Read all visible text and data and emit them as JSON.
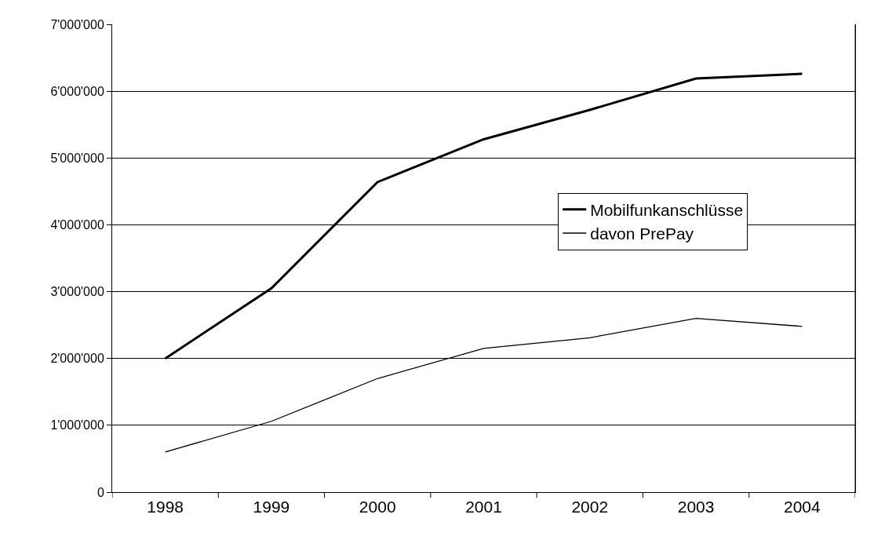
{
  "chart_data": {
    "type": "line",
    "categories": [
      "1998",
      "1999",
      "2000",
      "2001",
      "2002",
      "2003",
      "2004"
    ],
    "series": [
      {
        "name": "Mobilfunkanschlüsse",
        "color": "#000000",
        "values": [
          2000000,
          3050000,
          4640000,
          5280000,
          5720000,
          6190000,
          6260000
        ]
      },
      {
        "name": "davon PrePay",
        "color": "#000000",
        "values": [
          600000,
          1060000,
          1700000,
          2150000,
          2310000,
          2600000,
          2480000
        ]
      }
    ],
    "ylim": [
      0,
      7000000
    ],
    "yticks": [
      0,
      {
        "value": 1000000,
        "label": "1'000'000"
      },
      {
        "value": 2000000,
        "label": "2'000'000"
      },
      {
        "value": 3000000,
        "label": "3'000'000"
      },
      {
        "value": 4000000,
        "label": "4'000'000"
      },
      {
        "value": 5000000,
        "label": "5'000'000"
      },
      {
        "value": 6000000,
        "label": "6'000'000"
      },
      {
        "value": 7000000,
        "label": "7'000'000"
      }
    ],
    "grid": "y",
    "legend": "right",
    "marker": "none",
    "line_style": "solid"
  }
}
